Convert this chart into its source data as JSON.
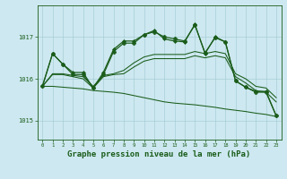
{
  "background_color": "#cde8f0",
  "grid_color": "#a0c8d0",
  "line_color": "#1a5c1a",
  "xlabel": "Graphe pression niveau de la mer (hPa)",
  "xlabel_fontsize": 6.5,
  "ylabel_ticks": [
    1015,
    1016,
    1017
  ],
  "xlim": [
    -0.5,
    23.5
  ],
  "ylim": [
    1014.55,
    1017.75
  ],
  "series": [
    {
      "x": [
        0,
        1,
        2,
        3,
        4,
        5,
        6,
        7,
        8,
        9,
        10,
        11,
        12,
        13,
        14,
        15,
        16,
        17,
        18,
        19,
        20,
        21,
        22,
        23
      ],
      "y": [
        1015.82,
        1016.6,
        1016.35,
        1016.15,
        1016.15,
        1015.78,
        1016.15,
        1016.7,
        1016.9,
        1016.9,
        1017.05,
        1017.15,
        1016.95,
        1016.9,
        1016.88,
        1017.3,
        1016.6,
        1017.0,
        1016.88,
        1015.95,
        1015.8,
        1015.7,
        1015.7,
        1015.12
      ],
      "marker": "D",
      "markersize": 2.0,
      "linewidth": 0.9
    },
    {
      "x": [
        0,
        1,
        2,
        3,
        4,
        5,
        6,
        7,
        8,
        9,
        10,
        11,
        12,
        13,
        14,
        15,
        16,
        17,
        18,
        19,
        20,
        21,
        22,
        23
      ],
      "y": [
        1015.82,
        1016.12,
        1016.12,
        1016.08,
        1016.05,
        1015.82,
        1016.08,
        1016.12,
        1016.2,
        1016.38,
        1016.52,
        1016.58,
        1016.58,
        1016.58,
        1016.58,
        1016.65,
        1016.6,
        1016.65,
        1016.6,
        1016.12,
        1016.0,
        1015.82,
        1015.78,
        1015.55
      ],
      "marker": null,
      "markersize": 0,
      "linewidth": 0.75
    },
    {
      "x": [
        0,
        1,
        2,
        3,
        4,
        5,
        6,
        7,
        8,
        9,
        10,
        11,
        12,
        13,
        14,
        15,
        16,
        17,
        18,
        19,
        20,
        21,
        22,
        23
      ],
      "y": [
        1015.82,
        1016.1,
        1016.1,
        1016.05,
        1016.0,
        1015.78,
        1016.05,
        1016.1,
        1016.12,
        1016.28,
        1016.42,
        1016.48,
        1016.48,
        1016.48,
        1016.48,
        1016.55,
        1016.5,
        1016.55,
        1016.5,
        1016.05,
        1015.9,
        1015.72,
        1015.68,
        1015.45
      ],
      "marker": null,
      "markersize": 0,
      "linewidth": 0.75
    },
    {
      "x": [
        0,
        1,
        2,
        3,
        4,
        5,
        6,
        7,
        8,
        9,
        10,
        11,
        12,
        13,
        14,
        15,
        16,
        17,
        18,
        19,
        20,
        21,
        22,
        23
      ],
      "y": [
        1015.82,
        1015.82,
        1015.8,
        1015.78,
        1015.76,
        1015.72,
        1015.7,
        1015.68,
        1015.65,
        1015.6,
        1015.55,
        1015.5,
        1015.45,
        1015.42,
        1015.4,
        1015.38,
        1015.35,
        1015.32,
        1015.28,
        1015.25,
        1015.22,
        1015.18,
        1015.15,
        1015.1
      ],
      "marker": null,
      "markersize": 0,
      "linewidth": 0.75
    },
    {
      "x": [
        0,
        1,
        2,
        3,
        4,
        5,
        6,
        7,
        8,
        9,
        10,
        11,
        12,
        13,
        14,
        15,
        16,
        17,
        18,
        19,
        20,
        21,
        22,
        23
      ],
      "y": [
        1015.82,
        1016.6,
        1016.35,
        1016.1,
        1016.1,
        1015.78,
        1016.1,
        1016.65,
        1016.85,
        1016.85,
        1017.05,
        1017.12,
        1017.0,
        1016.95,
        1016.9,
        1017.28,
        1016.62,
        1016.98,
        1016.88,
        1015.95,
        1015.8,
        1015.68,
        1015.68,
        1015.12
      ],
      "marker": "P",
      "markersize": 3.0,
      "linewidth": 0.85
    }
  ]
}
